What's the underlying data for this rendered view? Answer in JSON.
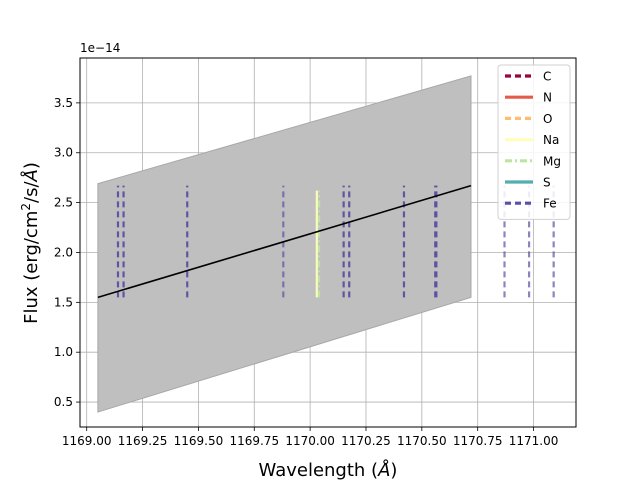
{
  "chart_data": {
    "type": "line",
    "xlabel_main": "Wavelength (",
    "xlabel_unit": "Å",
    "xlabel_close": ")",
    "ylabel_parts": {
      "a": "Flux (erg/cm",
      "b": "2",
      "c": "/s/",
      "d": "Å",
      "e": ")"
    },
    "offset_text": "1e−14",
    "xlim": [
      1168.97,
      1171.19
    ],
    "ylim": [
      0.25,
      3.95
    ],
    "grid": true,
    "xticks": [
      {
        "value": 1169.0,
        "label": "1169.00"
      },
      {
        "value": 1169.25,
        "label": "1169.25"
      },
      {
        "value": 1169.5,
        "label": "1169.50"
      },
      {
        "value": 1169.75,
        "label": "1169.75"
      },
      {
        "value": 1170.0,
        "label": "1170.00"
      },
      {
        "value": 1170.25,
        "label": "1170.25"
      },
      {
        "value": 1170.5,
        "label": "1170.50"
      },
      {
        "value": 1170.75,
        "label": "1170.75"
      },
      {
        "value": 1171.0,
        "label": "1171.00"
      }
    ],
    "yticks": [
      {
        "value": 0.5,
        "label": "0.5"
      },
      {
        "value": 1.0,
        "label": "1.0"
      },
      {
        "value": 1.5,
        "label": "1.5"
      },
      {
        "value": 2.0,
        "label": "2.0"
      },
      {
        "value": 2.5,
        "label": "2.5"
      },
      {
        "value": 3.0,
        "label": "3.0"
      },
      {
        "value": 3.5,
        "label": "3.5"
      }
    ],
    "band": {
      "x": [
        1169.05,
        1170.72
      ],
      "lower": [
        0.4,
        1.55
      ],
      "upper": [
        2.69,
        3.77
      ],
      "color": "#bfbfbf"
    },
    "fit_line": {
      "x": [
        1169.05,
        1170.72
      ],
      "y": [
        1.55,
        2.67
      ],
      "color": "#000000"
    },
    "line_ymin": 1.55,
    "line_ymax": 2.67,
    "lines": [
      {
        "x": 1169.14,
        "element": "Fe"
      },
      {
        "x": 1169.165,
        "element": "Fe"
      },
      {
        "x": 1169.45,
        "element": "Fe"
      },
      {
        "x": 1169.88,
        "element": "Fe",
        "faint": true
      },
      {
        "x": 1170.03,
        "element": "Na",
        "top": 2.62
      },
      {
        "x": 1170.04,
        "element": "Mg",
        "top": 2.62
      },
      {
        "x": 1170.15,
        "element": "Fe"
      },
      {
        "x": 1170.175,
        "element": "Fe"
      },
      {
        "x": 1170.42,
        "element": "Fe"
      },
      {
        "x": 1170.56,
        "element": "Fe"
      },
      {
        "x": 1170.565,
        "element": "Fe"
      },
      {
        "x": 1170.87,
        "element": "Fe",
        "faint": true
      },
      {
        "x": 1170.98,
        "element": "Fe",
        "faint": true
      },
      {
        "x": 1171.09,
        "element": "Fe",
        "faint": true
      }
    ],
    "legend": {
      "placement": "upper right",
      "entries": [
        {
          "name": "C",
          "color": "#9e0142",
          "dash": "dashed"
        },
        {
          "name": "N",
          "color": "#e55a4a",
          "dash": "solid"
        },
        {
          "name": "O",
          "color": "#fdbe6e",
          "dash": "dashed"
        },
        {
          "name": "Na",
          "color": "#fefebe",
          "dash": "solid"
        },
        {
          "name": "Mg",
          "color": "#bee5a0",
          "dash": "dashdot"
        },
        {
          "name": "S",
          "color": "#54aead",
          "dash": "solid"
        },
        {
          "name": "Fe",
          "color": "#5e4fa2",
          "dash": "dashed"
        }
      ]
    }
  }
}
